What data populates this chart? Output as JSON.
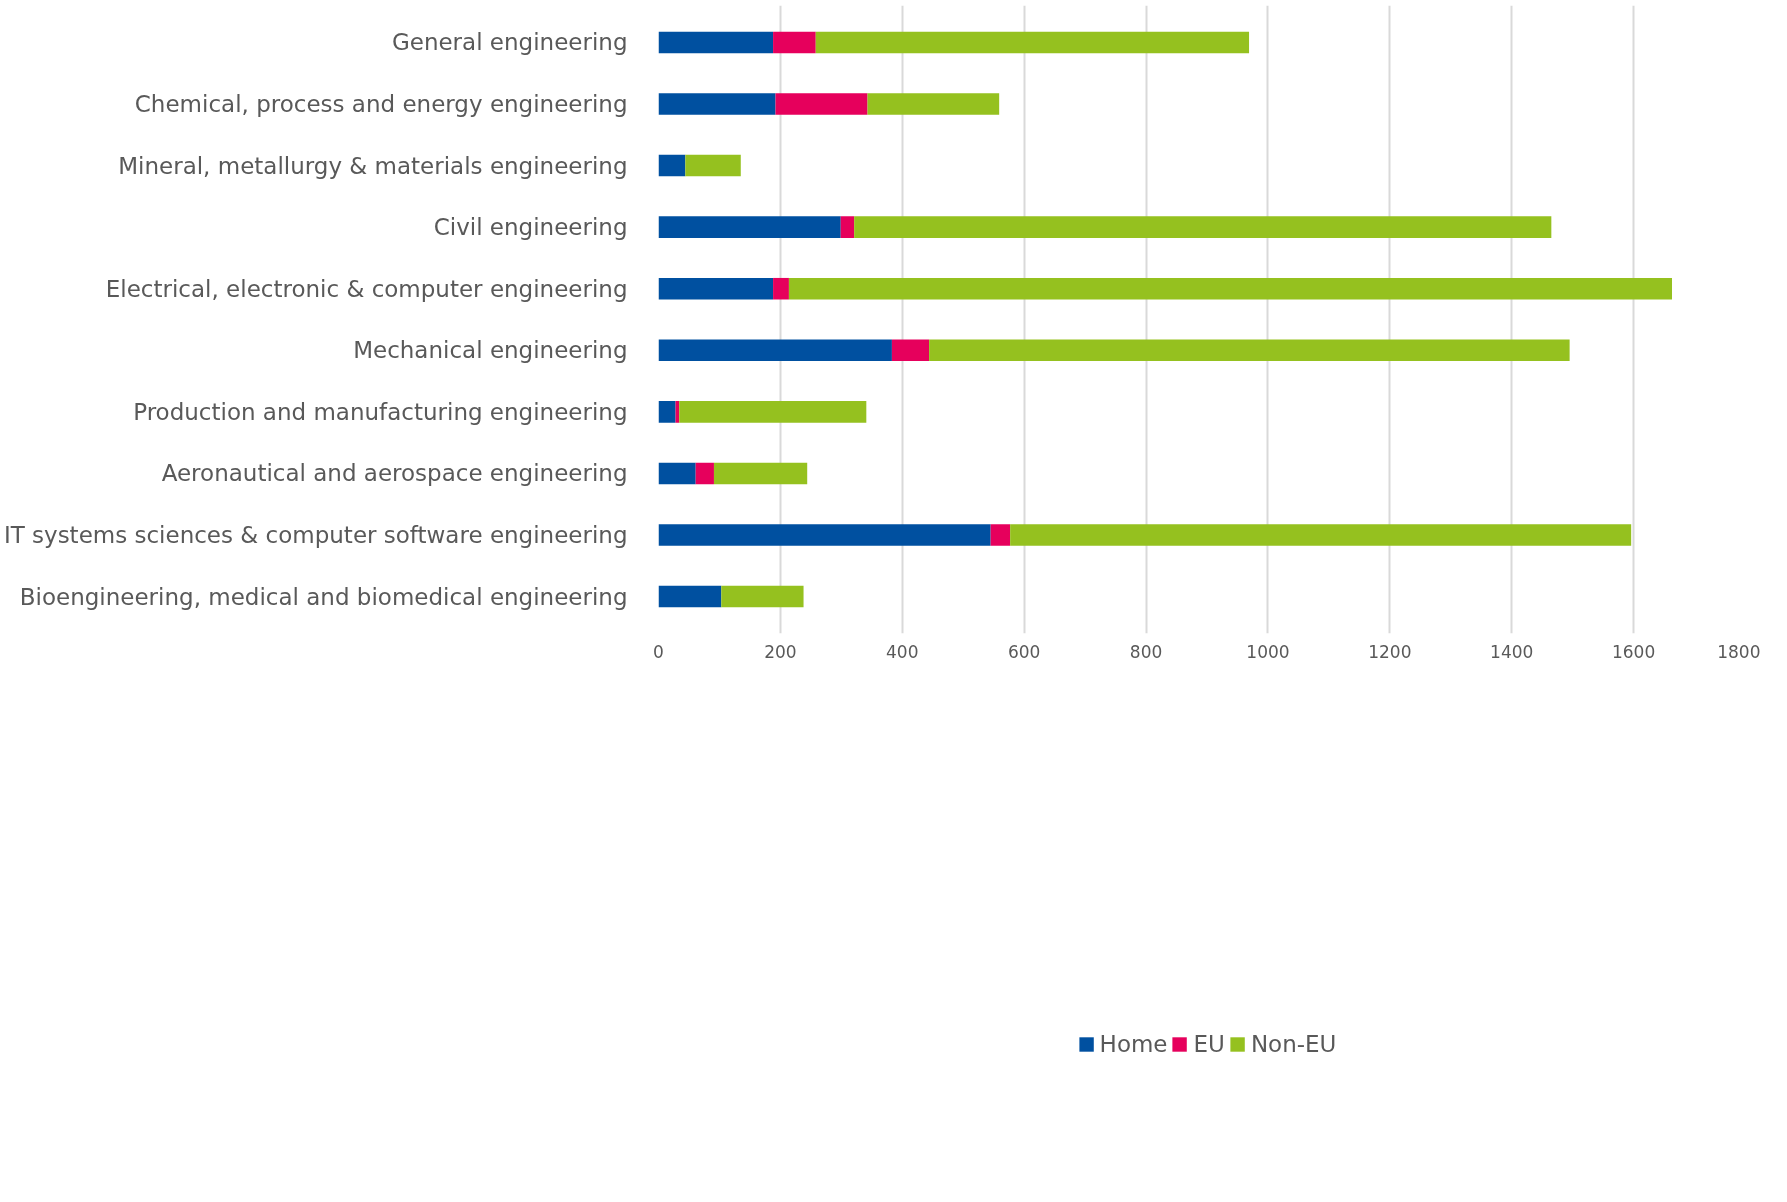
{
  "chart_data": {
    "type": "bar",
    "orientation": "horizontal",
    "stacked": true,
    "categories": [
      "General engineering",
      "Chemical, process and energy engineering",
      "Mineral, metallurgy & materials engineering",
      "Civil engineering",
      "Electrical, electronic & computer engineering",
      "Mechanical engineering",
      "Production and manufacturing engineering",
      "Aeronautical and aerospace engineering",
      "IT systems sciences & computer software engineering",
      "Bioengineering, medical and biomedical engineering"
    ],
    "series": [
      {
        "name": "Home",
        "color": "#0050a0",
        "values": [
          188,
          192,
          44,
          299,
          188,
          383,
          28,
          61,
          545,
          103
        ]
      },
      {
        "name": "EU",
        "color": "#e6005c",
        "values": [
          70,
          151,
          0,
          22,
          26,
          61,
          6,
          30,
          32,
          0
        ]
      },
      {
        "name": "Non-EU",
        "color": "#95c11f",
        "values": [
          711,
          216,
          91,
          1144,
          1449,
          1051,
          307,
          153,
          1019,
          135
        ]
      }
    ],
    "xlim": [
      0,
      1800
    ],
    "xticks": [
      0,
      200,
      400,
      600,
      800,
      1000,
      1200,
      1400,
      1600,
      1800
    ],
    "grid": "x",
    "legend": "bottom"
  }
}
